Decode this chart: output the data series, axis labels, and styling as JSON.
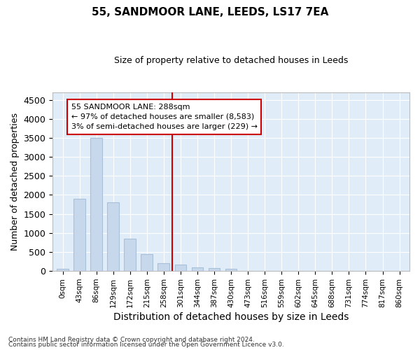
{
  "title": "55, SANDMOOR LANE, LEEDS, LS17 7EA",
  "subtitle": "Size of property relative to detached houses in Leeds",
  "xlabel": "Distribution of detached houses by size in Leeds",
  "ylabel": "Number of detached properties",
  "bar_color": "#c8d8ec",
  "bar_edge_color": "#a8c0d8",
  "background_color": "#e0ecf8",
  "grid_color": "#ffffff",
  "vline_color": "#cc0000",
  "annotation_text": "55 SANDMOOR LANE: 288sqm\n← 97% of detached houses are smaller (8,583)\n3% of semi-detached houses are larger (229) →",
  "categories": [
    "0sqm",
    "43sqm",
    "86sqm",
    "129sqm",
    "172sqm",
    "215sqm",
    "258sqm",
    "301sqm",
    "344sqm",
    "387sqm",
    "430sqm",
    "473sqm",
    "516sqm",
    "559sqm",
    "602sqm",
    "645sqm",
    "688sqm",
    "731sqm",
    "774sqm",
    "817sqm",
    "860sqm"
  ],
  "values": [
    50,
    1900,
    3500,
    1800,
    850,
    450,
    200,
    175,
    100,
    70,
    50,
    10,
    5,
    0,
    0,
    0,
    0,
    0,
    0,
    0,
    0
  ],
  "vline_bin": 7,
  "ylim": [
    0,
    4700
  ],
  "yticks": [
    0,
    500,
    1000,
    1500,
    2000,
    2500,
    3000,
    3500,
    4000,
    4500
  ],
  "footer_line1": "Contains HM Land Registry data © Crown copyright and database right 2024.",
  "footer_line2": "Contains public sector information licensed under the Open Government Licence v3.0."
}
